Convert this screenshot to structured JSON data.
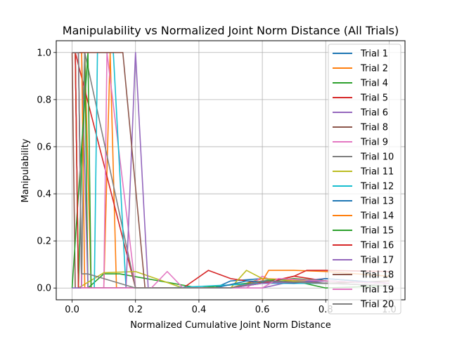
{
  "chart_data": {
    "type": "line",
    "title": "Manipulability vs Normalized Joint Norm Distance (All Trials)",
    "xlabel": "Normalized Cumulative Joint Norm Distance",
    "ylabel": "Manipulability",
    "xlim": [
      -0.05,
      1.05
    ],
    "ylim": [
      -0.05,
      1.05
    ],
    "xticks": [
      0.0,
      0.2,
      0.4,
      0.6,
      0.8,
      1.0
    ],
    "xtick_labels": [
      "0.0",
      "0.2",
      "0.4",
      "0.6",
      "0.8",
      "1.0"
    ],
    "yticks": [
      0.0,
      0.2,
      0.4,
      0.6,
      0.8,
      1.0
    ],
    "ytick_labels": [
      "0.0",
      "0.2",
      "0.4",
      "0.6",
      "0.8",
      "1.0"
    ],
    "grid": true,
    "legend_position": "top-right",
    "series": [
      {
        "name": "Trial 1",
        "color": "#1f77b4",
        "x": [
          0.0,
          0.01,
          0.02,
          0.2,
          0.45,
          0.5,
          0.6,
          0.7,
          0.8,
          1.0
        ],
        "y": [
          1.0,
          1.0,
          0.0,
          0.0,
          0.0,
          0.03,
          0.04,
          0.02,
          0.03,
          0.02
        ]
      },
      {
        "name": "Trial 2",
        "color": "#ff7f0e",
        "x": [
          0.0,
          0.04,
          0.06,
          0.1,
          0.12,
          0.14,
          0.5,
          0.6,
          0.8,
          1.0
        ],
        "y": [
          1.0,
          1.0,
          0.0,
          0.0,
          1.0,
          0.0,
          0.0,
          0.04,
          0.03,
          0.02
        ]
      },
      {
        "name": "Trial 4",
        "color": "#2ca02c",
        "x": [
          0.0,
          0.01,
          0.02,
          0.04,
          0.05,
          0.1,
          0.15,
          0.4,
          0.55,
          0.7,
          0.8,
          1.0
        ],
        "y": [
          1.0,
          1.0,
          0.0,
          1.0,
          0.0,
          0.06,
          0.06,
          0.0,
          0.02,
          0.03,
          0.0,
          0.01
        ]
      },
      {
        "name": "Trial 5",
        "color": "#d62728",
        "x": [
          0.0,
          0.01,
          0.2,
          0.35,
          0.43,
          0.5,
          0.6,
          0.7,
          0.8,
          1.0
        ],
        "y": [
          1.0,
          1.0,
          0.0,
          0.0,
          0.075,
          0.04,
          0.02,
          0.05,
          0.03,
          0.02
        ]
      },
      {
        "name": "Trial 6",
        "color": "#9467bd",
        "x": [
          0.0,
          0.01,
          0.03,
          0.05,
          0.2,
          0.6,
          0.7,
          0.8,
          1.0
        ],
        "y": [
          1.0,
          1.0,
          1.0,
          0.0,
          0.0,
          0.0,
          0.03,
          0.04,
          0.02
        ]
      },
      {
        "name": "Trial 8",
        "color": "#8c564b",
        "x": [
          0.0,
          0.01,
          0.2,
          0.5,
          0.6,
          0.7,
          0.8,
          1.0
        ],
        "y": [
          1.0,
          0.0,
          0.0,
          0.0,
          0.02,
          0.03,
          0.02,
          0.03
        ]
      },
      {
        "name": "Trial 9",
        "color": "#e377c2",
        "x": [
          0.0,
          0.01,
          0.02,
          0.1,
          0.11,
          0.2,
          0.55,
          0.6,
          0.65,
          0.8,
          1.0
        ],
        "y": [
          1.0,
          1.0,
          0.0,
          0.0,
          1.0,
          0.0,
          0.0,
          0.05,
          0.02,
          0.04,
          0.02
        ]
      },
      {
        "name": "Trial 10",
        "color": "#7f7f7f",
        "x": [
          0.0,
          0.02,
          0.03,
          0.04,
          0.2,
          0.5,
          0.6,
          0.8,
          1.0
        ],
        "y": [
          1.0,
          1.0,
          0.0,
          1.0,
          0.0,
          0.0,
          0.03,
          0.02,
          0.01
        ]
      },
      {
        "name": "Trial 11",
        "color": "#bcbd22",
        "x": [
          0.0,
          0.01,
          0.02,
          0.1,
          0.2,
          0.35,
          0.5,
          0.55,
          0.6,
          0.7,
          0.8,
          1.0
        ],
        "y": [
          1.0,
          1.0,
          0.0,
          0.065,
          0.07,
          0.0,
          0.0,
          0.075,
          0.04,
          0.03,
          0.03,
          0.02
        ]
      },
      {
        "name": "Trial 12",
        "color": "#17becf",
        "x": [
          0.0,
          0.07,
          0.08,
          0.13,
          0.17,
          0.3,
          0.6,
          0.8,
          1.0
        ],
        "y": [
          0.0,
          0.0,
          1.0,
          1.0,
          0.0,
          0.0,
          0.02,
          0.02,
          0.01
        ]
      },
      {
        "name": "Trial 13",
        "color": "#1f77b4",
        "x": [
          0.0,
          0.02,
          0.03,
          0.05,
          0.2,
          0.45,
          0.55,
          0.7,
          0.8,
          1.0
        ],
        "y": [
          1.0,
          1.0,
          0.0,
          0.0,
          0.0,
          0.0,
          0.03,
          0.02,
          0.04,
          0.02
        ]
      },
      {
        "name": "Trial 14",
        "color": "#ff7f0e",
        "x": [
          0.0,
          0.03,
          0.04,
          0.5,
          0.6,
          0.62,
          0.7,
          0.8,
          1.0
        ],
        "y": [
          1.0,
          1.0,
          0.0,
          0.0,
          0.03,
          0.075,
          0.075,
          0.07,
          0.05
        ]
      },
      {
        "name": "Trial 15",
        "color": "#2ca02c",
        "x": [
          0.0,
          0.05,
          0.06,
          0.2,
          0.5,
          0.6,
          0.7,
          0.8,
          1.0
        ],
        "y": [
          0.0,
          1.0,
          0.0,
          0.0,
          0.0,
          0.03,
          0.04,
          0.03,
          0.02
        ]
      },
      {
        "name": "Trial 16",
        "color": "#d62728",
        "x": [
          0.0,
          0.01,
          0.02,
          0.2,
          0.5,
          0.6,
          0.7,
          0.74,
          0.8,
          1.0
        ],
        "y": [
          1.0,
          1.0,
          0.0,
          0.0,
          0.0,
          0.02,
          0.05,
          0.075,
          0.075,
          0.07
        ]
      },
      {
        "name": "Trial 17",
        "color": "#9467bd",
        "x": [
          0.0,
          0.17,
          0.2,
          0.24,
          0.5,
          0.6,
          0.8,
          1.0
        ],
        "y": [
          0.0,
          0.0,
          1.0,
          0.0,
          0.0,
          0.02,
          0.03,
          0.02
        ]
      },
      {
        "name": "Trial 18",
        "color": "#8c564b",
        "x": [
          0.0,
          0.15,
          0.16,
          0.23,
          0.5,
          0.6,
          0.8,
          1.0
        ],
        "y": [
          1.0,
          1.0,
          1.0,
          0.0,
          0.0,
          0.03,
          0.02,
          0.01
        ]
      },
      {
        "name": "Trial 19",
        "color": "#e377c2",
        "x": [
          0.0,
          0.02,
          0.03,
          0.25,
          0.3,
          0.35,
          0.6,
          0.65,
          0.8,
          1.0
        ],
        "y": [
          1.0,
          1.0,
          0.0,
          0.0,
          0.07,
          0.0,
          0.0,
          0.04,
          0.03,
          0.02
        ]
      },
      {
        "name": "Trial 20",
        "color": "#7f7f7f",
        "x": [
          0.0,
          0.02,
          0.03,
          0.04,
          0.05,
          0.2,
          0.5,
          0.6,
          0.8,
          1.0
        ],
        "y": [
          1.0,
          1.0,
          0.06,
          0.06,
          0.06,
          0.0,
          0.0,
          0.03,
          0.02,
          0.01
        ]
      }
    ]
  }
}
